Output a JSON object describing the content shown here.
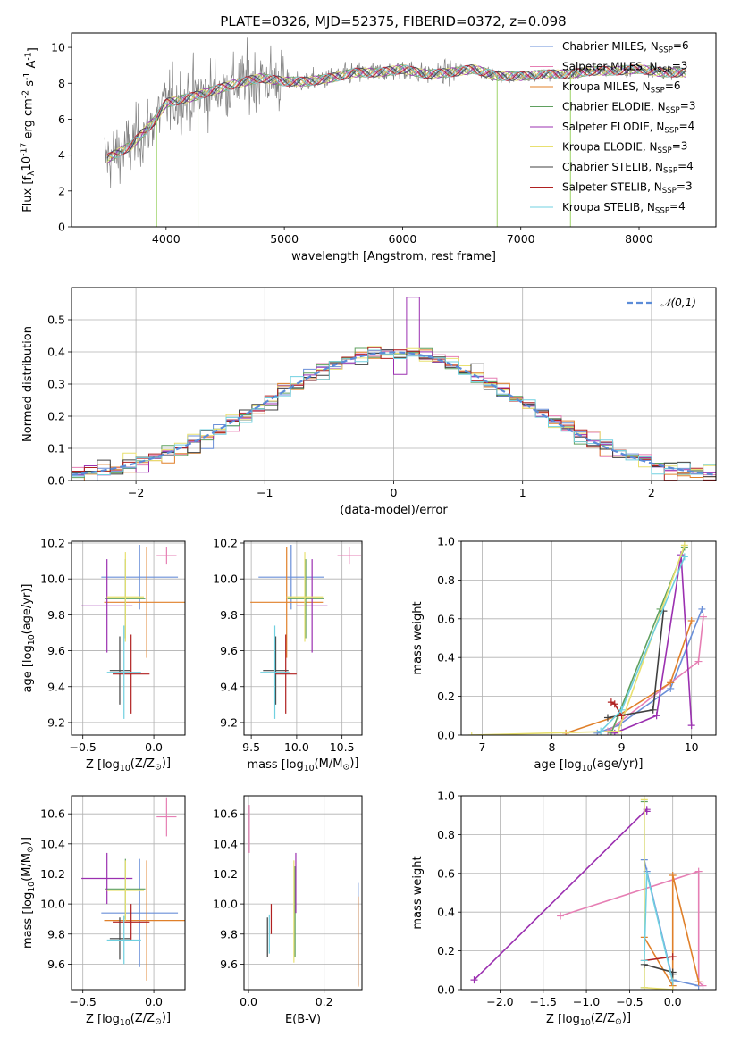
{
  "figure": {
    "title": "PLATE=0326, MJD=52375, FIBERID=0372, z=0.098",
    "series_names": [
      "Chabrier MILES, N$_{SSP}$=6",
      "Salpeter MILES, N$_{SSP}$=3",
      "Kroupa MILES, N$_{SSP}$=6",
      "Chabrier ELODIE, N$_{SSP}$=3",
      "Salpeter ELODIE, N$_{SSP}$=4",
      "Kroupa ELODIE, N$_{SSP}$=3",
      "Chabrier STELIB, N$_{SSP}$=4",
      "Salpeter STELIB, N$_{SSP}$=3",
      "Kroupa STELIB, N$_{SSP}$=4"
    ],
    "series_colors": [
      "#6a8fd8",
      "#e67fb4",
      "#e0802a",
      "#5fa05f",
      "#9b30b0",
      "#e8e070",
      "#404040",
      "#b02020",
      "#70d0e0"
    ]
  },
  "chart_data": [
    {
      "id": "spectrum",
      "type": "line",
      "xlabel": "wavelength [Angstrom, rest frame]",
      "ylabel": "Flux [f$_\\lambda$10$^{-17}$ erg cm$^{-2}$ s$^{-1}$ A$^{-1}$]",
      "xlim": [
        3200,
        8650
      ],
      "ylim": [
        0,
        10.8
      ],
      "xticks": [
        4000,
        5000,
        6000,
        7000,
        8000
      ],
      "yticks": [
        0,
        2,
        4,
        6,
        8,
        10
      ],
      "grid": false,
      "legend": "upper right",
      "data_color": "#808080",
      "model_color": "#70d0e0",
      "continuum_x": [
        3500,
        3700,
        3900,
        4000,
        4200,
        4400,
        4600,
        4800,
        5000,
        5200,
        5400,
        5600,
        5800,
        6000,
        6200,
        6400,
        6600,
        6800,
        7000,
        7200,
        7400,
        7600,
        7800,
        8000,
        8200,
        8400
      ],
      "continuum_y": [
        3.8,
        4.5,
        5.9,
        6.9,
        7.2,
        7.6,
        8.0,
        8.3,
        8.1,
        8.1,
        8.3,
        8.6,
        8.6,
        8.8,
        8.5,
        8.6,
        8.8,
        8.4,
        8.4,
        8.5,
        8.5,
        8.7,
        8.7,
        8.8,
        8.6,
        8.6
      ],
      "spikes": [
        {
          "x": 3920,
          "y": 0.0
        },
        {
          "x": 4270,
          "y": 0.0
        },
        {
          "x": 6800,
          "y": 0.0
        },
        {
          "x": 7420,
          "y": 0.0
        }
      ]
    },
    {
      "id": "residuals",
      "type": "histogram",
      "xlabel": "(data-model)/error",
      "ylabel": "Normed distribution",
      "xlim": [
        -2.5,
        2.5
      ],
      "ylim": [
        0,
        0.6
      ],
      "xticks": [
        -2,
        -1,
        0,
        1,
        2
      ],
      "yticks": [
        0.0,
        0.1,
        0.2,
        0.3,
        0.4,
        0.5
      ],
      "grid": true,
      "legend": "upper right",
      "gaussian_label": "$\\mathcal{N}(0,1)$",
      "gaussian_color": "#5b8cd8",
      "bin_width": 0.1
    },
    {
      "id": "age_vs_Z",
      "type": "errorbar",
      "xlabel": "Z [log$_{10}$(Z/Z$_\\odot$)]",
      "ylabel": "age  [log$_{10}$(age/yr)]",
      "xlim": [
        -0.58,
        0.22
      ],
      "ylim": [
        9.13,
        10.21
      ],
      "xticks": [
        -0.5,
        0.0
      ],
      "yticks": [
        9.2,
        9.4,
        9.6,
        9.8,
        10.0,
        10.2
      ],
      "grid": true,
      "points": [
        {
          "s": 0,
          "x": -0.1,
          "y": 10.01,
          "xerr": 0.27,
          "yerr": 0.18
        },
        {
          "s": 1,
          "x": 0.09,
          "y": 10.13,
          "xerr": 0.07,
          "yerr": 0.05
        },
        {
          "s": 2,
          "x": -0.05,
          "y": 9.87,
          "xerr": 0.3,
          "yerr": 0.31
        },
        {
          "s": 3,
          "x": -0.2,
          "y": 9.89,
          "xerr": 0.14,
          "yerr": 0.22
        },
        {
          "s": 4,
          "x": -0.33,
          "y": 9.85,
          "xerr": 0.18,
          "yerr": 0.26
        },
        {
          "s": 5,
          "x": -0.2,
          "y": 9.9,
          "xerr": 0.13,
          "yerr": 0.25
        },
        {
          "s": 6,
          "x": -0.24,
          "y": 9.49,
          "xerr": 0.07,
          "yerr": 0.19
        },
        {
          "s": 7,
          "x": -0.16,
          "y": 9.47,
          "xerr": 0.13,
          "yerr": 0.22
        },
        {
          "s": 8,
          "x": -0.21,
          "y": 9.48,
          "xerr": 0.12,
          "yerr": 0.26
        }
      ]
    },
    {
      "id": "age_vs_mass",
      "type": "errorbar",
      "xlabel": "mass [log$_{10}$(M/M$_\\odot$)]",
      "ylabel": "",
      "xlim": [
        9.42,
        10.72
      ],
      "ylim": [
        9.13,
        10.21
      ],
      "xticks": [
        9.5,
        10.0,
        10.5
      ],
      "yticks": [
        9.2,
        9.4,
        9.6,
        9.8,
        10.0,
        10.2
      ],
      "grid": true,
      "points": [
        {
          "s": 0,
          "x": 9.94,
          "y": 10.01,
          "xerr": 0.36,
          "yerr": 0.18
        },
        {
          "s": 1,
          "x": 10.58,
          "y": 10.13,
          "xerr": 0.13,
          "yerr": 0.05
        },
        {
          "s": 2,
          "x": 9.89,
          "y": 9.87,
          "xerr": 0.4,
          "yerr": 0.31
        },
        {
          "s": 3,
          "x": 10.1,
          "y": 9.89,
          "xerr": 0.2,
          "yerr": 0.22
        },
        {
          "s": 4,
          "x": 10.17,
          "y": 9.85,
          "xerr": 0.17,
          "yerr": 0.26
        },
        {
          "s": 5,
          "x": 10.09,
          "y": 9.9,
          "xerr": 0.2,
          "yerr": 0.25
        },
        {
          "s": 6,
          "x": 9.77,
          "y": 9.49,
          "xerr": 0.14,
          "yerr": 0.19
        },
        {
          "s": 7,
          "x": 9.88,
          "y": 9.47,
          "xerr": 0.12,
          "yerr": 0.22
        },
        {
          "s": 8,
          "x": 9.76,
          "y": 9.48,
          "xerr": 0.16,
          "yerr": 0.26
        }
      ]
    },
    {
      "id": "mass_weight_vs_age",
      "type": "line",
      "xlabel": "age  [log$_{10}$(age/yr)]",
      "ylabel": "mass weight",
      "xlim": [
        6.7,
        10.35
      ],
      "ylim": [
        0,
        1.0
      ],
      "xticks": [
        7,
        8,
        9,
        10
      ],
      "yticks": [
        0.0,
        0.2,
        0.4,
        0.6,
        0.8,
        1.0
      ],
      "grid": true,
      "series": [
        {
          "s": 0,
          "x": [
            8.65,
            8.95,
            9.7,
            10.15
          ],
          "y": [
            0.01,
            0.05,
            0.24,
            0.65
          ]
        },
        {
          "s": 1,
          "x": [
            8.8,
            9.7,
            10.1,
            10.17
          ],
          "y": [
            0.02,
            0.27,
            0.38,
            0.61
          ]
        },
        {
          "s": 2,
          "x": [
            8.2,
            8.95,
            9.7,
            10.0
          ],
          "y": [
            0.01,
            0.1,
            0.27,
            0.59
          ]
        },
        {
          "s": 3,
          "x": [
            8.85,
            9.55,
            9.9
          ],
          "y": [
            0.01,
            0.65,
            0.97
          ]
        },
        {
          "s": 4,
          "x": [
            8.9,
            9.5,
            9.85,
            10.0
          ],
          "y": [
            0.01,
            0.1,
            0.93,
            0.05
          ]
        },
        {
          "s": 5,
          "x": [
            6.85,
            8.95,
            9.9
          ],
          "y": [
            0.0,
            0.02,
            0.98
          ]
        },
        {
          "s": 6,
          "x": [
            8.8,
            9.45,
            9.6
          ],
          "y": [
            0.09,
            0.13,
            0.64
          ]
        },
        {
          "s": 7,
          "x": [
            8.85,
            8.9,
            9.0
          ],
          "y": [
            0.17,
            0.16,
            0.1
          ]
        },
        {
          "s": 8,
          "x": [
            8.7,
            9.0,
            9.9
          ],
          "y": [
            0.02,
            0.13,
            0.92
          ]
        }
      ]
    },
    {
      "id": "mass_vs_Z",
      "type": "errorbar",
      "xlabel": "Z [log$_{10}$(Z/Z$_\\odot$)]",
      "ylabel": "mass [log$_{10}$(M/M$_\\odot$)]",
      "xlim": [
        -0.58,
        0.22
      ],
      "ylim": [
        9.43,
        10.72
      ],
      "xticks": [
        -0.5,
        0.0
      ],
      "yticks": [
        9.6,
        9.8,
        10.0,
        10.2,
        10.4,
        10.6
      ],
      "grid": true,
      "points": [
        {
          "s": 0,
          "x": -0.1,
          "y": 9.94,
          "xerr": 0.27,
          "yerr": 0.36
        },
        {
          "s": 1,
          "x": 0.09,
          "y": 10.58,
          "xerr": 0.07,
          "yerr": 0.13
        },
        {
          "s": 2,
          "x": -0.05,
          "y": 9.89,
          "xerr": 0.3,
          "yerr": 0.4
        },
        {
          "s": 3,
          "x": -0.2,
          "y": 10.1,
          "xerr": 0.14,
          "yerr": 0.2
        },
        {
          "s": 4,
          "x": -0.33,
          "y": 10.17,
          "xerr": 0.18,
          "yerr": 0.17
        },
        {
          "s": 5,
          "x": -0.2,
          "y": 10.09,
          "xerr": 0.13,
          "yerr": 0.2
        },
        {
          "s": 6,
          "x": -0.24,
          "y": 9.77,
          "xerr": 0.07,
          "yerr": 0.14
        },
        {
          "s": 7,
          "x": -0.16,
          "y": 9.88,
          "xerr": 0.13,
          "yerr": 0.12
        },
        {
          "s": 8,
          "x": -0.21,
          "y": 9.76,
          "xerr": 0.12,
          "yerr": 0.16
        }
      ]
    },
    {
      "id": "mass_vs_ebv",
      "type": "errorbar",
      "xlabel": "E(B-V)",
      "ylabel": "",
      "xlim": [
        -0.012,
        0.3
      ],
      "ylim": [
        9.43,
        10.72
      ],
      "xticks": [
        0.0,
        0.2
      ],
      "yticks": [
        9.6,
        9.8,
        10.0,
        10.2,
        10.4,
        10.6
      ],
      "grid": true,
      "points": [
        {
          "s": 0,
          "x": 0.29,
          "y": 9.8,
          "xerr": 0,
          "yerr": 0.34
        },
        {
          "s": 1,
          "x": 0.002,
          "y": 10.5,
          "xerr": 0,
          "yerr": 0.16
        },
        {
          "s": 2,
          "x": 0.29,
          "y": 9.75,
          "xerr": 0,
          "yerr": 0.3
        },
        {
          "s": 3,
          "x": 0.123,
          "y": 9.95,
          "xerr": 0,
          "yerr": 0.3
        },
        {
          "s": 4,
          "x": 0.125,
          "y": 10.14,
          "xerr": 0,
          "yerr": 0.2
        },
        {
          "s": 5,
          "x": 0.12,
          "y": 9.95,
          "xerr": 0,
          "yerr": 0.34
        },
        {
          "s": 6,
          "x": 0.05,
          "y": 9.78,
          "xerr": 0,
          "yerr": 0.13
        },
        {
          "s": 7,
          "x": 0.06,
          "y": 9.9,
          "xerr": 0,
          "yerr": 0.1
        },
        {
          "s": 8,
          "x": 0.055,
          "y": 9.8,
          "xerr": 0,
          "yerr": 0.13
        }
      ]
    },
    {
      "id": "mass_weight_vs_Z",
      "type": "line",
      "xlabel": "Z [log$_{10}$(Z/Z$_\\odot$)]",
      "ylabel": "mass weight",
      "xlim": [
        -2.45,
        0.5
      ],
      "ylim": [
        0,
        1.0
      ],
      "xticks": [
        -2.0,
        -1.5,
        -1.0,
        -0.5,
        0.0
      ],
      "yticks": [
        0.0,
        0.2,
        0.4,
        0.6,
        0.8,
        1.0
      ],
      "grid": true,
      "series": [
        {
          "s": 0,
          "x": [
            -0.33,
            -0.3,
            0.0,
            0.3
          ],
          "y": [
            0.67,
            0.61,
            0.05,
            0.02
          ]
        },
        {
          "s": 1,
          "x": [
            -1.3,
            0.3,
            0.3,
            0.35
          ],
          "y": [
            0.38,
            0.61,
            0.04,
            0.02
          ]
        },
        {
          "s": 2,
          "x": [
            -0.33,
            0.0,
            0.0,
            0.3
          ],
          "y": [
            0.27,
            0.02,
            0.59,
            0.04
          ]
        },
        {
          "s": 3,
          "x": [
            -0.33,
            -0.33
          ],
          "y": [
            0.97,
            0.01
          ]
        },
        {
          "s": 4,
          "x": [
            -2.3,
            -0.3,
            -0.3
          ],
          "y": [
            0.05,
            0.93,
            0.92
          ]
        },
        {
          "s": 5,
          "x": [
            -0.33,
            -0.33,
            0.0
          ],
          "y": [
            0.98,
            0.01,
            0.0
          ]
        },
        {
          "s": 6,
          "x": [
            -0.33,
            0.0,
            0.0
          ],
          "y": [
            0.13,
            0.09,
            0.08
          ]
        },
        {
          "s": 7,
          "x": [
            -0.33,
            0.0
          ],
          "y": [
            0.15,
            0.17
          ]
        },
        {
          "s": 8,
          "x": [
            -0.33,
            -0.3,
            0.0
          ],
          "y": [
            0.15,
            0.6,
            0.04
          ]
        }
      ]
    }
  ]
}
